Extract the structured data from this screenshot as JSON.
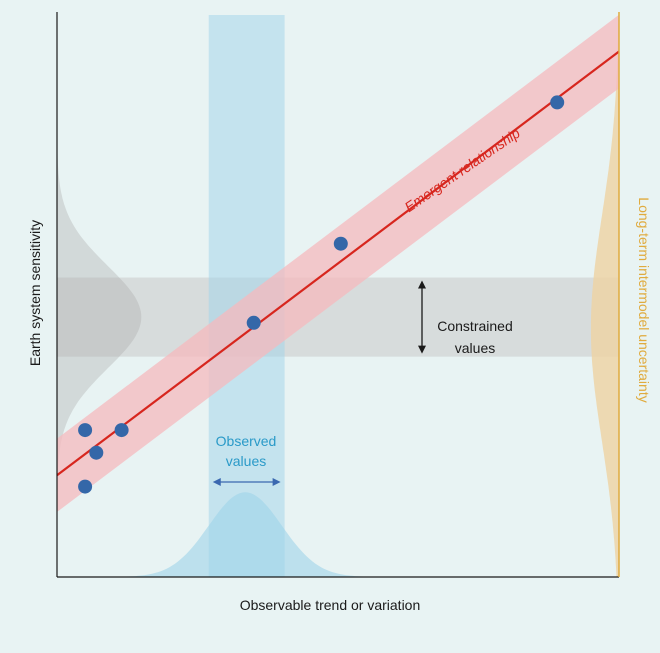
{
  "labels": {
    "y_axis": "Earth system sensitivity",
    "x_axis": "Observable trend or variation",
    "right_axis": "Long-term intermodel uncertainty",
    "relationship": "Emergent relationship",
    "constrained_line1": "Constrained",
    "constrained_line2": "values",
    "observed_line1": "Observed",
    "observed_line2": "values"
  },
  "colors": {
    "background": "#e8f3f3",
    "axis": "#1a1a1a",
    "relationship": "#d7261e",
    "relationship_band": "#f6b9bd",
    "observed_band": "#9fd3ea",
    "observed_text": "#2a9ac8",
    "observed_arrow": "#3a68b0",
    "constrained_band": "#c8c8c8",
    "point": "#3467a8",
    "right_axis": "#e0ab3e",
    "right_distribution": "#edd4a6"
  },
  "chart_data": {
    "type": "scatter",
    "points": [
      {
        "x": 0.05,
        "y": 0.26
      },
      {
        "x": 0.07,
        "y": 0.22
      },
      {
        "x": 0.115,
        "y": 0.26
      },
      {
        "x": 0.05,
        "y": 0.16
      },
      {
        "x": 0.35,
        "y": 0.45
      },
      {
        "x": 0.505,
        "y": 0.59
      },
      {
        "x": 0.89,
        "y": 0.84
      }
    ],
    "relationship": {
      "intercept": 0.18,
      "slope": 0.75,
      "band_halfwidth": 0.065
    },
    "observed_range": [
      0.27,
      0.405
    ],
    "constrained_range": [
      0.39,
      0.53
    ],
    "observed_distribution": {
      "mean": 0.335,
      "sd": 0.065,
      "peak": 0.15
    },
    "prior_distribution": {
      "mean": 0.46,
      "sd": 0.09,
      "peak": 0.15
    },
    "long_term_distribution": {
      "mean": 0.44,
      "sd": 0.2,
      "peak": 0.05
    }
  }
}
